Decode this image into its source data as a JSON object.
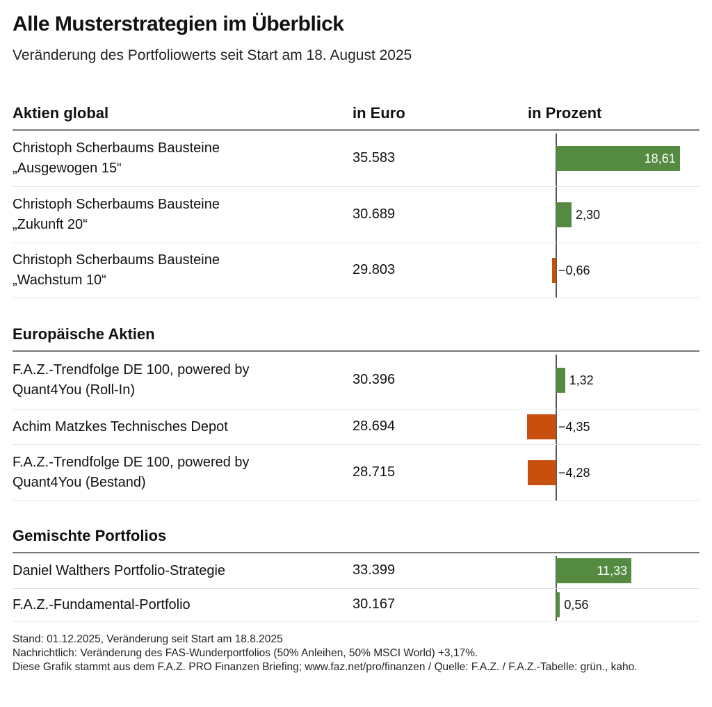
{
  "title": "Alle Musterstrategien im Überblick",
  "subtitle": "Veränderung des Portfoliowerts seit Start am 18. August 2025",
  "columns": {
    "euro": "in Euro",
    "percent": "in Prozent"
  },
  "colors": {
    "positive": "#548b41",
    "negative": "#c8500f",
    "axis": "#555555"
  },
  "chart_data": {
    "type": "bar",
    "orientation": "horizontal",
    "title": "Alle Musterstrategien im Überblick",
    "subtitle": "Veränderung des Portfoliowerts seit Start am 18. August 2025",
    "xlabel": "in Prozent",
    "groups": [
      {
        "name": "Aktien global",
        "rows": [
          {
            "line1": "Christoph Scherbaums Bausteine",
            "line2": "„Ausgewogen 15“",
            "euro": "35.583",
            "pct": 18.61,
            "label": "18,61"
          },
          {
            "line1": "Christoph Scherbaums Bausteine",
            "line2": "„Zukunft 20“",
            "euro": "30.689",
            "pct": 2.3,
            "label": "2,30"
          },
          {
            "line1": "Christoph Scherbaums Bausteine",
            "line2": "„Wachstum 10“",
            "euro": "29.803",
            "pct": -0.66,
            "label": "−0,66"
          }
        ]
      },
      {
        "name": "Europäische Aktien",
        "rows": [
          {
            "line1": "F.A.Z.-Trendfolge DE 100, powered by",
            "line2": "Quant4You (Roll-In)",
            "euro": "30.396",
            "pct": 1.32,
            "label": "1,32"
          },
          {
            "line1": "Achim Matzkes Technisches Depot",
            "line2": "",
            "euro": "28.694",
            "pct": -4.35,
            "label": "−4,35"
          },
          {
            "line1": "F.A.Z.-Trendfolge DE 100, powered by",
            "line2": "Quant4You (Bestand)",
            "euro": "28.715",
            "pct": -4.28,
            "label": "−4,28"
          }
        ]
      },
      {
        "name": "Gemischte Portfolios",
        "rows": [
          {
            "line1": "Daniel Walthers Portfolio-Strategie",
            "line2": "",
            "euro": "33.399",
            "pct": 11.33,
            "label": "11,33"
          },
          {
            "line1": "F.A.Z.-Fundamental-Portfolio",
            "line2": "",
            "euro": "30.167",
            "pct": 0.56,
            "label": "0,56"
          }
        ]
      }
    ],
    "xlim": [
      -4.5,
      21
    ]
  },
  "footer": [
    "Stand: 01.12.2025, Veränderung seit Start am 18.8.2025",
    "Nachrichtlich: Veränderung des FAS-Wunderportfolios (50% Anleihen, 50% MSCI World)  +3,17%.",
    "Diese Grafik stammt aus dem F.A.Z. PRO Finanzen Briefing; www.faz.net/pro/finanzen / Quelle: F.A.Z. / F.A.Z.-Tabelle: grün., kaho."
  ]
}
